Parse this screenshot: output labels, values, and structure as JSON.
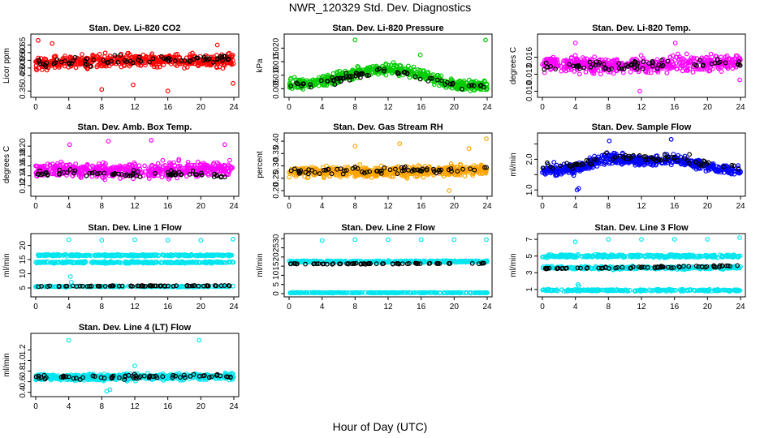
{
  "figure": {
    "title": "NWR_120329  Std. Dev. Diagnostics",
    "xlabel": "Hour of Day (UTC)"
  },
  "chart_data": [
    {
      "type": "scatter",
      "title": "Stan. Dev. Li-820 CO2",
      "ylabel": "Licor ppm",
      "xlim": [
        0,
        24
      ],
      "x_ticks": [
        0,
        4,
        8,
        12,
        16,
        20,
        24
      ],
      "ylim": [
        0.33,
        0.7
      ],
      "y_ticks": [
        0.35,
        0.45,
        0.5,
        0.55,
        0.6,
        0.65
      ],
      "y_tick_labels": [
        "0.35",
        "0.45",
        "0.50",
        "0.55",
        "0.60",
        "0.65"
      ],
      "series": [
        {
          "color": "#ff0000",
          "kind": "band",
          "x_range": [
            0,
            24
          ],
          "center": [
            [
              0,
              0.53
            ],
            [
              12,
              0.55
            ],
            [
              24,
              0.55
            ]
          ],
          "spread": 0.07,
          "count": 520
        },
        {
          "color": "#000000",
          "kind": "band",
          "x_range": [
            0,
            24
          ],
          "center": [
            [
              0,
              0.53
            ],
            [
              12,
              0.55
            ],
            [
              24,
              0.56
            ]
          ],
          "spread": 0.05,
          "count": 70
        },
        {
          "color": "#ff0000",
          "kind": "points",
          "x": [
            0.3,
            2.0,
            8.0,
            11.8,
            16.0,
            23.9,
            22.0
          ],
          "y": [
            0.68,
            0.66,
            0.36,
            0.39,
            0.35,
            0.4,
            0.65
          ]
        }
      ]
    },
    {
      "type": "scatter",
      "title": "Stan. Dev. Li-820 Pressure",
      "ylabel": "kPa",
      "xlim": [
        0,
        24
      ],
      "x_ticks": [
        0,
        4,
        8,
        12,
        16,
        20,
        24
      ],
      "ylim": [
        0.003,
        0.024
      ],
      "y_ticks": [
        0.005,
        0.01,
        0.015,
        0.02
      ],
      "y_tick_labels": [
        "0.005",
        "0.010",
        "0.015",
        "0.020"
      ],
      "series": [
        {
          "color": "#00cc00",
          "kind": "band",
          "x_range": [
            0,
            24
          ],
          "center": [
            [
              0,
              0.0065
            ],
            [
              4,
              0.0075
            ],
            [
              9,
              0.0115
            ],
            [
              12,
              0.0125
            ],
            [
              16,
              0.0105
            ],
            [
              20,
              0.0065
            ],
            [
              24,
              0.006
            ]
          ],
          "spread": 0.0035,
          "count": 520
        },
        {
          "color": "#000000",
          "kind": "band",
          "x_range": [
            0,
            24
          ],
          "center": [
            [
              0,
              0.006
            ],
            [
              4,
              0.007
            ],
            [
              9,
              0.0105
            ],
            [
              12,
              0.0115
            ],
            [
              16,
              0.0095
            ],
            [
              20,
              0.006
            ],
            [
              24,
              0.0055
            ]
          ],
          "spread": 0.002,
          "count": 70
        },
        {
          "color": "#00cc00",
          "kind": "points",
          "x": [
            8.0,
            23.8,
            15.9,
            16.2
          ],
          "y": [
            0.023,
            0.023,
            0.0175,
            0.0015
          ]
        }
      ]
    },
    {
      "type": "scatter",
      "title": "Stan. Dev. Li-820 Temp.",
      "ylabel": "degrees C",
      "xlim": [
        0,
        24
      ],
      "x_ticks": [
        0,
        4,
        8,
        12,
        16,
        20,
        24
      ],
      "ylim": [
        0.0095,
        0.0195
      ],
      "y_ticks": [
        0.01,
        0.013,
        0.016
      ],
      "y_tick_labels": [
        "0.010",
        "0.013",
        "0.016"
      ],
      "series": [
        {
          "color": "#ff00ff",
          "kind": "band",
          "x_range": [
            0,
            24
          ],
          "center": [
            [
              0,
              0.0148
            ],
            [
              12,
              0.0145
            ],
            [
              24,
              0.0152
            ]
          ],
          "spread": 0.0022,
          "count": 520
        },
        {
          "color": "#000000",
          "kind": "band",
          "x_range": [
            0,
            24
          ],
          "center": [
            [
              0,
              0.0145
            ],
            [
              12,
              0.0145
            ],
            [
              24,
              0.015
            ]
          ],
          "spread": 0.0015,
          "count": 70
        },
        {
          "color": "#ff00ff",
          "kind": "points",
          "x": [
            11.8,
            4.0,
            16.1,
            23.9
          ],
          "y": [
            0.01,
            0.0185,
            0.0185,
            0.012
          ]
        }
      ]
    },
    {
      "type": "scatter",
      "title": "Stan. Dev. Amb. Box Temp.",
      "ylabel": "degrees C",
      "xlim": [
        0,
        24
      ],
      "x_ticks": [
        0,
        4,
        8,
        12,
        16,
        20,
        24
      ],
      "ylim": [
        0.105,
        0.22
      ],
      "y_ticks": [
        0.12,
        0.14,
        0.16,
        0.18,
        0.2
      ],
      "y_tick_labels": [
        "0.12",
        "0.14",
        "0.16",
        "0.18",
        "0.20"
      ],
      "series": [
        {
          "color": "#ff00ff",
          "kind": "band",
          "x_range": [
            0,
            24
          ],
          "center": [
            [
              0,
              0.153
            ],
            [
              12,
              0.15
            ],
            [
              24,
              0.155
            ]
          ],
          "spread": 0.025,
          "count": 520
        },
        {
          "color": "#000000",
          "kind": "band",
          "x_range": [
            0,
            24
          ],
          "center": [
            [
              0,
              0.145
            ],
            [
              12,
              0.145
            ],
            [
              24,
              0.14
            ]
          ],
          "spread": 0.012,
          "count": 70
        },
        {
          "color": "#ff00ff",
          "kind": "points",
          "x": [
            8.8,
            14.0,
            4.1,
            22.9
          ],
          "y": [
            0.21,
            0.212,
            0.203,
            0.203
          ]
        }
      ]
    },
    {
      "type": "scatter",
      "title": "Stan. Dev. Gas Stream RH",
      "ylabel": "percent",
      "xlim": [
        0,
        24
      ],
      "x_ticks": [
        0,
        4,
        8,
        12,
        16,
        20,
        24
      ],
      "ylim": [
        0.19,
        0.42
      ],
      "y_ticks": [
        0.2,
        0.25,
        0.3,
        0.35,
        0.4
      ],
      "y_tick_labels": [
        "0.20",
        "0.25",
        "0.30",
        "0.35",
        "0.40"
      ],
      "series": [
        {
          "color": "#ffa500",
          "kind": "band",
          "x_range": [
            0,
            24
          ],
          "center": [
            [
              0,
              0.275
            ],
            [
              12,
              0.275
            ],
            [
              24,
              0.285
            ]
          ],
          "spread": 0.035,
          "count": 560
        },
        {
          "color": "#000000",
          "kind": "band",
          "x_range": [
            0,
            24
          ],
          "center": [
            [
              0,
              0.28
            ],
            [
              12,
              0.28
            ],
            [
              24,
              0.285
            ]
          ],
          "spread": 0.025,
          "count": 70
        },
        {
          "color": "#ffa500",
          "kind": "points",
          "x": [
            8.0,
            13.4,
            23.9,
            19.4,
            21.8
          ],
          "y": [
            0.38,
            0.39,
            0.41,
            0.2,
            0.37
          ]
        }
      ]
    },
    {
      "type": "scatter",
      "title": "Stan. Dev. Sample Flow",
      "ylabel": "ml/min",
      "xlim": [
        0,
        24
      ],
      "x_ticks": [
        0,
        4,
        8,
        12,
        16,
        20,
        24
      ],
      "ylim": [
        0.9,
        2.75
      ],
      "y_ticks": [
        1.0,
        1.5,
        2.0,
        2.5
      ],
      "y_tick_labels": [
        "1.0",
        "",
        "2.0",
        ""
      ],
      "series": [
        {
          "color": "#0000ff",
          "kind": "band",
          "x_range": [
            0,
            24
          ],
          "center": [
            [
              0,
              1.65
            ],
            [
              4,
              1.7
            ],
            [
              8,
              2.05
            ],
            [
              12,
              1.95
            ],
            [
              16,
              2.0
            ],
            [
              20,
              1.75
            ],
            [
              24,
              1.6
            ]
          ],
          "spread": 0.28,
          "count": 560
        },
        {
          "color": "#000000",
          "kind": "band",
          "x_range": [
            0,
            24
          ],
          "center": [
            [
              0,
              1.7
            ],
            [
              4,
              1.75
            ],
            [
              8,
              2.15
            ],
            [
              12,
              2.0
            ],
            [
              16,
              2.05
            ],
            [
              20,
              1.8
            ],
            [
              24,
              1.75
            ]
          ],
          "spread": 0.25,
          "count": 70
        },
        {
          "color": "#0000ff",
          "kind": "points",
          "x": [
            4.2,
            4.4,
            8.1,
            15.6
          ],
          "y": [
            1.0,
            1.05,
            2.6,
            2.65
          ]
        }
      ]
    },
    {
      "type": "scatter",
      "title": "Stan. Dev. Line 1 Flow",
      "ylabel": "ml/min",
      "xlim": [
        0,
        24
      ],
      "x_ticks": [
        0,
        4,
        8,
        12,
        16,
        20,
        24
      ],
      "ylim": [
        3,
        23
      ],
      "y_ticks": [
        5,
        10,
        15,
        20
      ],
      "y_tick_labels": [
        "5",
        "10",
        "15",
        "20"
      ],
      "series": [
        {
          "color": "#00e5ee",
          "kind": "band",
          "x_range": [
            0,
            24
          ],
          "center": [
            [
              0,
              16.5
            ],
            [
              24,
              16.5
            ]
          ],
          "spread": 0.5,
          "count": 300
        },
        {
          "color": "#00e5ee",
          "kind": "band",
          "x_range": [
            0,
            24
          ],
          "center": [
            [
              0,
              14.0
            ],
            [
              24,
              14.0
            ]
          ],
          "spread": 0.5,
          "count": 300
        },
        {
          "color": "#00e5ee",
          "kind": "band",
          "x_range": [
            0,
            24
          ],
          "center": [
            [
              0,
              5.5
            ],
            [
              24,
              5.5
            ]
          ],
          "spread": 0.3,
          "count": 200
        },
        {
          "color": "#000000",
          "kind": "band",
          "x_range": [
            0,
            24
          ],
          "center": [
            [
              0,
              5.6
            ],
            [
              24,
              5.8
            ]
          ],
          "spread": 0.25,
          "count": 70
        },
        {
          "color": "#00e5ee",
          "kind": "points",
          "x": [
            4.0,
            8.0,
            12.0,
            16.0,
            20.0,
            23.9,
            4.2,
            4.3
          ],
          "y": [
            22.0,
            21.8,
            22.0,
            21.8,
            21.8,
            22.2,
            9.0,
            7.0
          ]
        }
      ]
    },
    {
      "type": "scatter",
      "title": "Stan. Dev. Line 2 Flow",
      "ylabel": "ml/min",
      "xlim": [
        0,
        24
      ],
      "x_ticks": [
        0,
        4,
        8,
        12,
        16,
        20,
        24
      ],
      "ylim": [
        0,
        31
      ],
      "y_ticks": [
        0,
        5,
        10,
        15,
        20,
        25,
        30
      ],
      "y_tick_labels": [
        "0",
        "5",
        "10",
        "15",
        "20",
        "25",
        "30"
      ],
      "series": [
        {
          "color": "#00e5ee",
          "kind": "band",
          "x_range": [
            0,
            24
          ],
          "center": [
            [
              0,
              17.5
            ],
            [
              24,
              17.5
            ]
          ],
          "spread": 0.8,
          "count": 400
        },
        {
          "color": "#00e5ee",
          "kind": "band",
          "x_range": [
            0,
            24
          ],
          "center": [
            [
              0,
              0.5
            ],
            [
              24,
              0.5
            ]
          ],
          "spread": 0.3,
          "count": 250
        },
        {
          "color": "#000000",
          "kind": "band",
          "x_range": [
            0,
            24
          ],
          "center": [
            [
              0,
              16.2
            ],
            [
              24,
              16.5
            ]
          ],
          "spread": 0.4,
          "count": 70
        },
        {
          "color": "#00e5ee",
          "kind": "points",
          "x": [
            4.0,
            8.0,
            12.0,
            16.0,
            20.0,
            23.9
          ],
          "y": [
            29.0,
            29.5,
            29.5,
            29.5,
            29.5,
            29.5
          ]
        }
      ]
    },
    {
      "type": "scatter",
      "title": "Stan. Dev. Line 3 Flow",
      "ylabel": "ml/min",
      "xlim": [
        0,
        24
      ],
      "x_ticks": [
        0,
        4,
        8,
        12,
        16,
        20,
        24
      ],
      "ylim": [
        0.5,
        7.3
      ],
      "y_ticks": [
        1,
        3,
        5,
        7
      ],
      "y_tick_labels": [
        "1",
        "3",
        "5",
        "7"
      ],
      "series": [
        {
          "color": "#00e5ee",
          "kind": "band",
          "x_range": [
            0,
            24
          ],
          "center": [
            [
              0,
              5.0
            ],
            [
              24,
              5.0
            ]
          ],
          "spread": 0.3,
          "count": 300
        },
        {
          "color": "#00e5ee",
          "kind": "band",
          "x_range": [
            0,
            24
          ],
          "center": [
            [
              0,
              3.6
            ],
            [
              24,
              3.6
            ]
          ],
          "spread": 0.3,
          "count": 300
        },
        {
          "color": "#00e5ee",
          "kind": "band",
          "x_range": [
            0,
            24
          ],
          "center": [
            [
              0,
              0.9
            ],
            [
              24,
              0.9
            ]
          ],
          "spread": 0.2,
          "count": 250
        },
        {
          "color": "#000000",
          "kind": "band",
          "x_range": [
            0,
            24
          ],
          "center": [
            [
              0,
              3.5
            ],
            [
              24,
              3.8
            ]
          ],
          "spread": 0.2,
          "count": 70
        },
        {
          "color": "#00e5ee",
          "kind": "points",
          "x": [
            4.0,
            8.0,
            12.0,
            16.0,
            20.0,
            23.9,
            4.3,
            4.4
          ],
          "y": [
            6.7,
            7.0,
            7.0,
            7.0,
            7.0,
            7.2,
            1.6,
            1.4
          ]
        }
      ]
    },
    {
      "type": "scatter",
      "title": "Stan. Dev. Line 4 (LT) Flow",
      "ylabel": "ml/min",
      "xlim": [
        0,
        24
      ],
      "x_ticks": [
        0,
        4,
        8,
        12,
        16,
        20,
        24
      ],
      "ylim": [
        0.38,
        1.45
      ],
      "y_ticks": [
        0.4,
        0.6,
        0.8,
        1.0,
        1.2
      ],
      "y_tick_labels": [
        "0.4",
        "0.6",
        "0.8",
        "1.0",
        "1.2"
      ],
      "series": [
        {
          "color": "#00e5ee",
          "kind": "band",
          "x_range": [
            0,
            24
          ],
          "center": [
            [
              0,
              0.68
            ],
            [
              24,
              0.7
            ]
          ],
          "spread": 0.1,
          "count": 560
        },
        {
          "color": "#000000",
          "kind": "band",
          "x_range": [
            0,
            24
          ],
          "center": [
            [
              0,
              0.68
            ],
            [
              24,
              0.7
            ]
          ],
          "spread": 0.08,
          "count": 70
        },
        {
          "color": "#00e5ee",
          "kind": "points",
          "x": [
            4.0,
            19.8,
            12.0,
            9.0,
            8.6
          ],
          "y": [
            1.38,
            1.38,
            0.9,
            0.45,
            0.42
          ]
        }
      ]
    }
  ]
}
